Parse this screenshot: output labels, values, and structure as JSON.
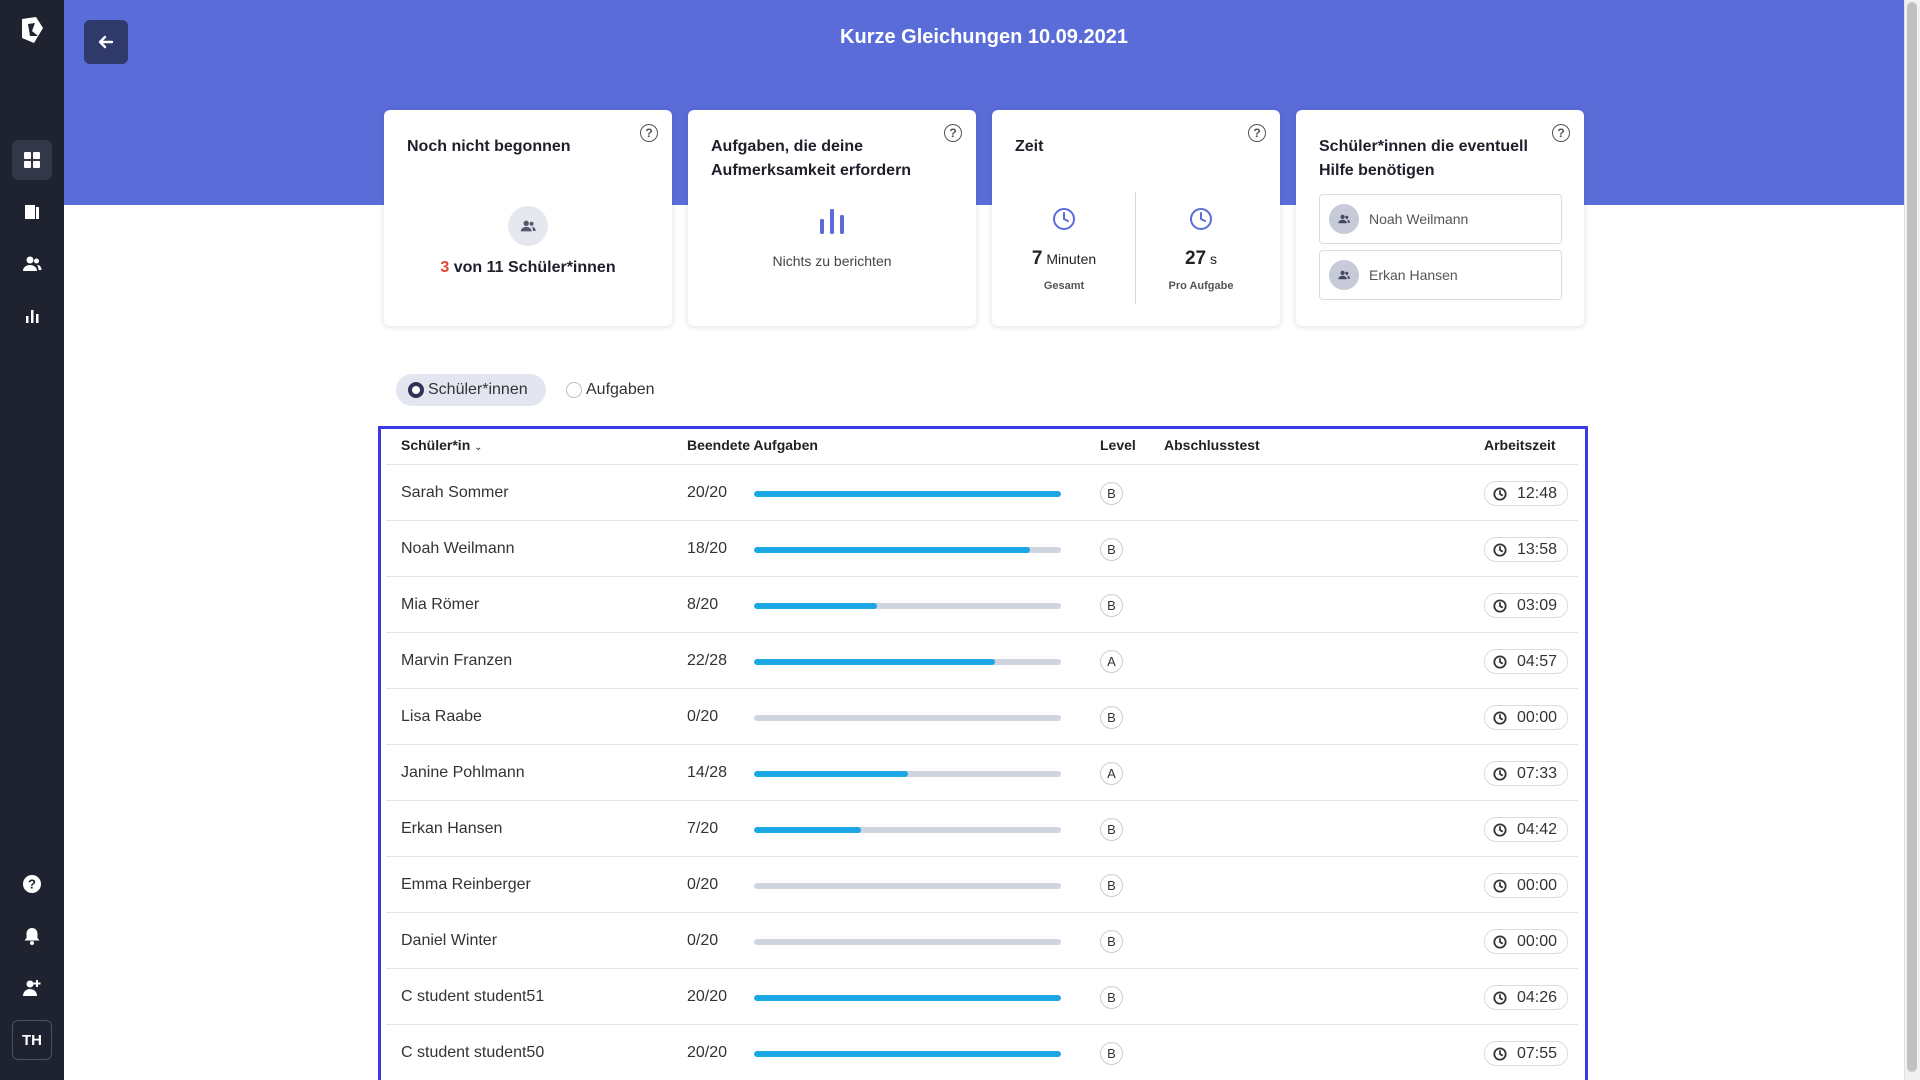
{
  "header": {
    "title": "Kurze Gleichungen 10.09.2021",
    "bg_color": "#5a6cd8"
  },
  "sidebar": {
    "avatar_initials": "TH",
    "items": [
      "dashboard-icon",
      "book-icon",
      "users-icon",
      "chart-icon"
    ],
    "bottom_items": [
      "help-icon",
      "bell-icon",
      "user-add-icon"
    ]
  },
  "cards": {
    "not_started": {
      "title": "Noch nicht begonnen",
      "count": "3",
      "suffix": " von 11 Schüler*innen"
    },
    "attention": {
      "title": "Aufgaben, die deine Aufmerksamkeit erfordern",
      "text": "Nichts zu berichten"
    },
    "time": {
      "title": "Zeit",
      "total_value": "7",
      "total_unit": "Minuten",
      "total_label": "Gesamt",
      "per_task_value": "27",
      "per_task_unit": "s",
      "per_task_label": "Pro Aufgabe"
    },
    "help": {
      "title": "Schüler*innen die eventuell Hilfe benötigen",
      "students": [
        "Noah Weilmann",
        "Erkan Hansen"
      ]
    }
  },
  "view_toggle": {
    "selected": "Schüler*innen",
    "other": "Aufgaben"
  },
  "table": {
    "headers": {
      "student": "Schüler*in",
      "done": "Beendete Aufgaben",
      "level": "Level",
      "final_test": "Abschlusstest",
      "work_time": "Arbeitszeit"
    },
    "rows": [
      {
        "name": "Sarah Sommer",
        "done": "20/20",
        "progress": 1.0,
        "level": "B",
        "time": "12:48"
      },
      {
        "name": "Noah Weilmann",
        "done": "18/20",
        "progress": 0.9,
        "level": "B",
        "time": "13:58"
      },
      {
        "name": "Mia Römer",
        "done": "8/20",
        "progress": 0.4,
        "level": "B",
        "time": "03:09"
      },
      {
        "name": "Marvin Franzen",
        "done": "22/28",
        "progress": 0.786,
        "level": "A",
        "time": "04:57"
      },
      {
        "name": "Lisa Raabe",
        "done": "0/20",
        "progress": 0.0,
        "level": "B",
        "time": "00:00"
      },
      {
        "name": "Janine Pohlmann",
        "done": "14/28",
        "progress": 0.5,
        "level": "A",
        "time": "07:33"
      },
      {
        "name": "Erkan Hansen",
        "done": "7/20",
        "progress": 0.35,
        "level": "B",
        "time": "04:42"
      },
      {
        "name": "Emma Reinberger",
        "done": "0/20",
        "progress": 0.0,
        "level": "B",
        "time": "00:00"
      },
      {
        "name": "Daniel Winter",
        "done": "0/20",
        "progress": 0.0,
        "level": "B",
        "time": "00:00"
      },
      {
        "name": "C student student51",
        "done": "20/20",
        "progress": 1.0,
        "level": "B",
        "time": "04:26"
      },
      {
        "name": "C student student50",
        "done": "20/20",
        "progress": 1.0,
        "level": "B",
        "time": "07:55"
      }
    ]
  }
}
